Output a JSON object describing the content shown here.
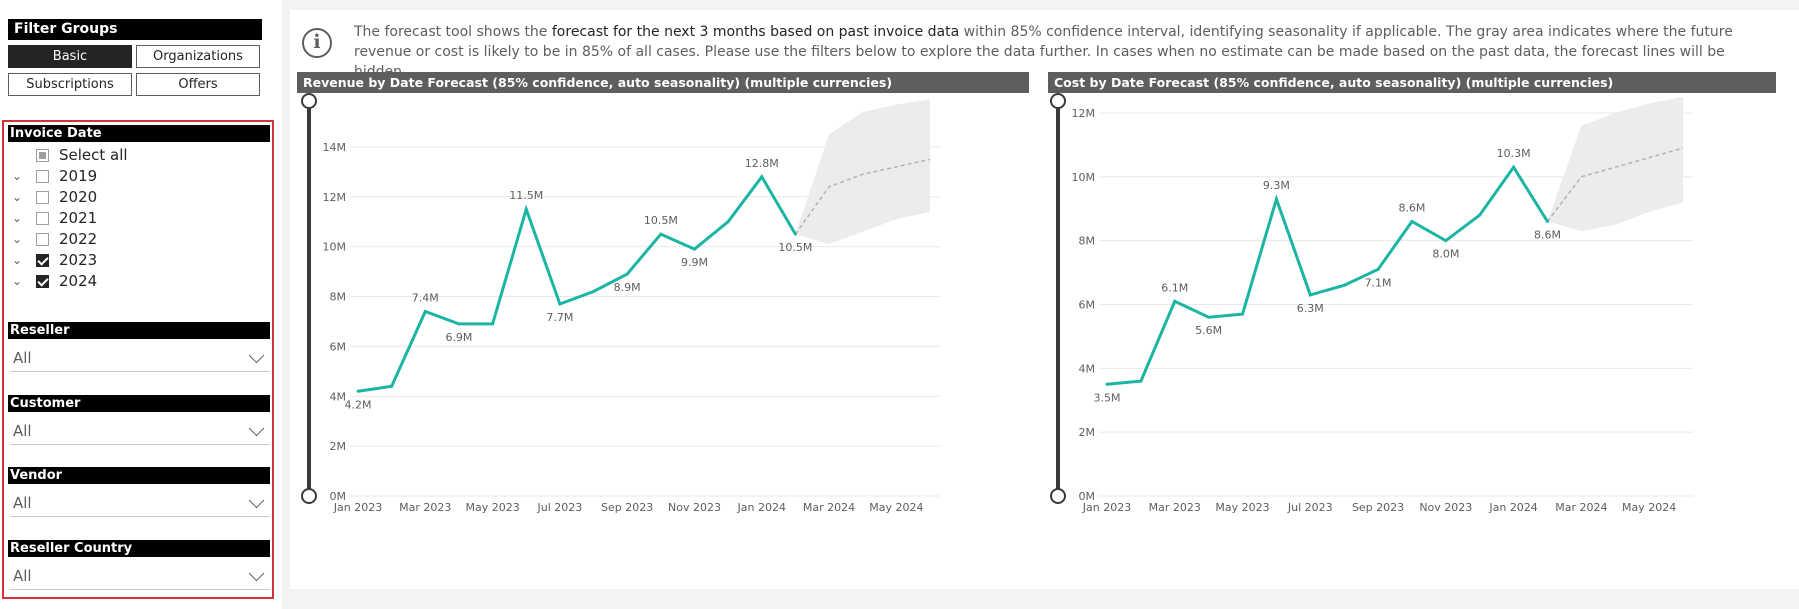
{
  "filter_groups": {
    "title": "Filter Groups",
    "buttons": [
      {
        "label": "Basic",
        "active": true
      },
      {
        "label": "Organizations",
        "active": false
      },
      {
        "label": "Subscriptions",
        "active": false
      },
      {
        "label": "Offers",
        "active": false
      }
    ]
  },
  "invoice_date": {
    "title": "Invoice Date",
    "select_all": "Select all",
    "years": [
      {
        "label": "2019",
        "checked": false
      },
      {
        "label": "2020",
        "checked": false
      },
      {
        "label": "2021",
        "checked": false
      },
      {
        "label": "2022",
        "checked": false
      },
      {
        "label": "2023",
        "checked": true
      },
      {
        "label": "2024",
        "checked": true
      }
    ]
  },
  "reseller": {
    "title": "Reseller",
    "value": "All"
  },
  "customer": {
    "title": "Customer",
    "value": "All"
  },
  "vendor": {
    "title": "Vendor",
    "value": "All"
  },
  "reseller_country": {
    "title": "Reseller Country",
    "value": "All"
  },
  "info": {
    "pre": "The forecast tool shows the ",
    "bold": "forecast for the next 3 months based on past invoice data",
    "post": " within 85% confidence interval, identifying seasonality if applicable. The gray area indicates where the future revenue or cost is likely to be in 85% of all cases. Please use the filters below to explore the data further. In cases when no estimate can be made based on the past data, the forecast lines will be hidden."
  },
  "colors": {
    "line": "#1ab5a3",
    "band": "#ececec",
    "forecast_line": "#b3b3b3"
  },
  "chart_data": [
    {
      "type": "line",
      "title": "Revenue by Date Forecast (85% confidence, auto seasonality) (multiple currencies)",
      "x_ticks": [
        "Jan 2023",
        "Mar 2023",
        "May 2023",
        "Jul 2023",
        "Sep 2023",
        "Nov 2023",
        "Jan 2024",
        "Mar 2024",
        "May 2024"
      ],
      "y_ticks": [
        "0M",
        "2M",
        "4M",
        "6M",
        "8M",
        "10M",
        "12M",
        "14M"
      ],
      "ylim": [
        0,
        16
      ],
      "x_months": 17,
      "actual": [
        4.2,
        4.4,
        7.4,
        6.9,
        6.9,
        11.5,
        7.7,
        8.2,
        8.9,
        10.5,
        9.9,
        11.0,
        12.8,
        10.5
      ],
      "labels": {
        "0": "4.2M",
        "2": "7.4M",
        "3": "6.9M",
        "5": "11.5M",
        "6": "7.7M",
        "8": "8.9M",
        "9": "10.5M",
        "10": "9.9M",
        "12": "12.8M",
        "13": "10.5M"
      },
      "forecast": {
        "x": [
          13,
          14,
          15,
          16,
          17
        ],
        "mid": [
          10.5,
          12.4,
          12.9,
          13.2,
          13.5
        ],
        "lower": [
          10.5,
          10.1,
          10.6,
          11.1,
          11.4
        ],
        "upper": [
          10.5,
          14.5,
          15.4,
          15.7,
          15.9
        ]
      }
    },
    {
      "type": "line",
      "title": "Cost by Date Forecast (85% confidence, auto seasonality) (multiple currencies)",
      "x_ticks": [
        "Jan 2023",
        "Mar 2023",
        "May 2023",
        "Jul 2023",
        "Sep 2023",
        "Nov 2023",
        "Jan 2024",
        "Mar 2024",
        "May 2024"
      ],
      "y_ticks": [
        "0M",
        "2M",
        "4M",
        "6M",
        "8M",
        "10M",
        "12M"
      ],
      "ylim": [
        0,
        12.5
      ],
      "x_months": 17,
      "actual": [
        3.5,
        3.6,
        6.1,
        5.6,
        5.7,
        9.3,
        6.3,
        6.6,
        7.1,
        8.6,
        8.0,
        8.8,
        10.3,
        8.6
      ],
      "labels": {
        "0": "3.5M",
        "2": "6.1M",
        "3": "5.6M",
        "5": "9.3M",
        "6": "6.3M",
        "8": "7.1M",
        "9": "8.6M",
        "10": "8.0M",
        "12": "10.3M",
        "13": "8.6M"
      },
      "forecast": {
        "x": [
          13,
          14,
          15,
          16,
          17
        ],
        "mid": [
          8.6,
          10.0,
          10.3,
          10.6,
          10.9
        ],
        "lower": [
          8.6,
          8.3,
          8.5,
          8.9,
          9.2
        ],
        "upper": [
          8.6,
          11.6,
          12.0,
          12.3,
          12.5
        ]
      }
    }
  ]
}
